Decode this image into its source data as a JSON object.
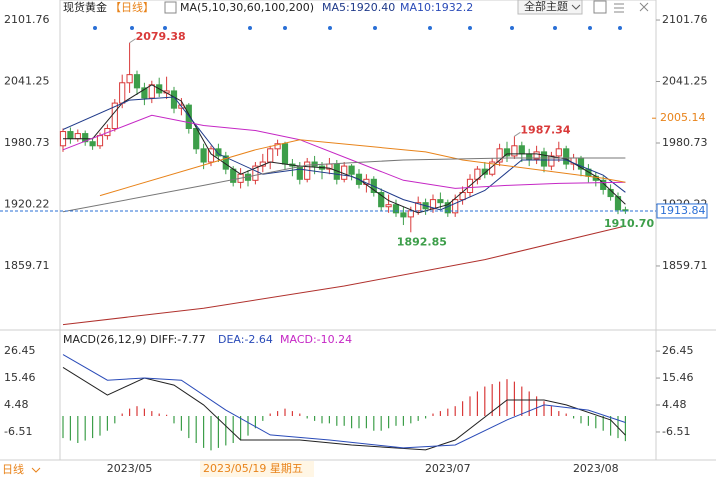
{
  "header": {
    "symbol": "现货黄金",
    "period": "【日线】",
    "ma_label": "MA(5,10,30,60,100,200)",
    "ma5": "MA5:1920.40",
    "ma10": "MA10:1932.2"
  },
  "toolbar": {
    "theme": "全部主题"
  },
  "footer": {
    "period": "日线",
    "cursor_date": "2023/05/19 星期五"
  },
  "chart_data": [
    {
      "type": "candlestick",
      "categories": [
        null,
        null,
        null,
        null,
        null,
        null,
        null,
        null,
        null,
        "2023/05",
        null,
        null,
        null,
        null,
        null,
        null,
        null,
        null,
        null,
        null,
        null,
        null,
        null,
        null,
        null,
        null,
        null,
        null,
        null,
        null,
        null,
        null,
        null,
        null,
        null,
        null,
        null,
        null,
        null,
        null,
        null,
        null,
        null,
        null,
        null,
        null,
        null,
        null,
        null,
        null,
        null,
        null,
        "2023/07",
        null,
        null,
        null,
        null,
        null,
        null,
        null,
        null,
        null,
        null,
        null,
        null,
        null,
        null,
        null,
        null,
        null,
        null,
        null,
        "2023/08",
        null,
        null,
        null,
        null
      ],
      "open": [
        1978,
        1992,
        1985,
        1990,
        1982,
        1978,
        1988,
        1995,
        2020,
        2040,
        2048,
        2035,
        2025,
        2038,
        2030,
        2032,
        2015,
        2018,
        1995,
        1975,
        1962,
        1975,
        1968,
        1955,
        1942,
        1950,
        1944,
        1958,
        1962,
        1975,
        1980,
        1960,
        1958,
        1945,
        1962,
        1958,
        1955,
        1960,
        1945,
        1958,
        1950,
        1940,
        1945,
        1932,
        1918,
        1920,
        1912,
        1908,
        1914,
        1922,
        1916,
        1925,
        1922,
        1912,
        1925,
        1932,
        1945,
        1955,
        1950,
        1962,
        1975,
        1968,
        1978,
        1970,
        1965,
        1972,
        1958,
        1968,
        1975,
        1960,
        1966,
        1955,
        1948,
        1944,
        1935,
        1928,
        1915
      ],
      "high": [
        1995,
        1996,
        1994,
        1993,
        1986,
        1991,
        1999,
        2024,
        2048,
        2079.38,
        2052,
        2040,
        2042,
        2045,
        2046,
        2036,
        2025,
        2020,
        1998,
        1980,
        1978,
        1980,
        1972,
        1958,
        1956,
        1954,
        1962,
        1970,
        1978,
        1984,
        1982,
        1965,
        1962,
        1966,
        1968,
        1962,
        1966,
        1964,
        1962,
        1960,
        1955,
        1950,
        1948,
        1936,
        1930,
        1925,
        1918,
        1918,
        1928,
        1926,
        1930,
        1932,
        1925,
        1930,
        1938,
        1950,
        1958,
        1962,
        1966,
        1980,
        1982,
        1987.34,
        1982,
        1975,
        1978,
        1976,
        1972,
        1982,
        1978,
        1970,
        1968,
        1960,
        1952,
        1948,
        1940,
        1932,
        1918
      ],
      "low": [
        1972,
        1980,
        1982,
        1978,
        1974,
        1975,
        1984,
        1992,
        2015,
        2030,
        2028,
        2018,
        2020,
        2026,
        2024,
        2010,
        2008,
        1990,
        1970,
        1955,
        1958,
        1962,
        1950,
        1938,
        1936,
        1938,
        1940,
        1952,
        1955,
        1968,
        1955,
        1948,
        1940,
        1942,
        1950,
        1945,
        1950,
        1940,
        1942,
        1944,
        1936,
        1932,
        1928,
        1914,
        1912,
        1908,
        1900,
        1892.85,
        1910,
        1910,
        1912,
        1916,
        1908,
        1908,
        1920,
        1928,
        1940,
        1946,
        1948,
        1958,
        1962,
        1965,
        1962,
        1958,
        1960,
        1952,
        1954,
        1962,
        1955,
        1954,
        1948,
        1942,
        1938,
        1930,
        1924,
        1910.7,
        1911
      ],
      "close": [
        1992,
        1985,
        1990,
        1982,
        1978,
        1988,
        1995,
        2020,
        2040,
        2048,
        2035,
        2025,
        2038,
        2030,
        2032,
        2015,
        2018,
        1995,
        1975,
        1962,
        1975,
        1968,
        1955,
        1942,
        1950,
        1944,
        1958,
        1962,
        1975,
        1980,
        1960,
        1958,
        1945,
        1962,
        1958,
        1955,
        1960,
        1945,
        1958,
        1950,
        1940,
        1945,
        1932,
        1918,
        1920,
        1912,
        1908,
        1914,
        1922,
        1916,
        1925,
        1922,
        1912,
        1925,
        1932,
        1945,
        1955,
        1950,
        1962,
        1975,
        1968,
        1978,
        1970,
        1965,
        1972,
        1958,
        1968,
        1975,
        1960,
        1966,
        1955,
        1948,
        1944,
        1935,
        1928,
        1915,
        1913.84
      ],
      "up_color": "#d93a3a",
      "down_color": "#3d9e4a",
      "ylim": [
        1801.6,
        2113.6
      ],
      "yticks": [
        1859.71,
        1920.22,
        1980.73,
        2041.25,
        2101.76
      ],
      "lines": [
        {
          "color": "#222222",
          "x": [
            0,
            4,
            8,
            12,
            16,
            20,
            24,
            28,
            32,
            36,
            40,
            44,
            48,
            52,
            56,
            60,
            64,
            68,
            72,
            76
          ],
          "values": [
            1985,
            1985,
            2020,
            2038,
            2022,
            1970,
            1950,
            1962,
            1958,
            1956,
            1945,
            1924,
            1912,
            1920,
            1945,
            1970,
            1970,
            1965,
            1948,
            1920.4
          ]
        },
        {
          "color": "#1f3a8a",
          "x": [
            0,
            9,
            15,
            21,
            27,
            32,
            39,
            46,
            51,
            57,
            62,
            68,
            73,
            76
          ],
          "values": [
            1994,
            2023,
            2026,
            1970,
            1950,
            1955,
            1948,
            1925,
            1915,
            1934,
            1964,
            1964,
            1949,
            1932.2
          ]
        },
        {
          "color": "#c527c5",
          "x": [
            0,
            12,
            19,
            26,
            32,
            39,
            46,
            53,
            60,
            67,
            76
          ],
          "values": [
            1974,
            2008,
            1998,
            1993,
            1984,
            1964,
            1944,
            1936,
            1939,
            1941,
            1942
          ]
        },
        {
          "color": "#e8831a",
          "x": [
            5,
            26,
            32,
            49,
            54,
            73,
            76
          ],
          "values": [
            1929,
            1974,
            1984,
            1972,
            1964,
            1946,
            1942
          ]
        },
        {
          "color": "#777777",
          "x": [
            0,
            19,
            33,
            46,
            60,
            76
          ],
          "values": [
            1913,
            1939,
            1959,
            1964,
            1966,
            1966
          ]
        },
        {
          "color": "#b0312d",
          "x": [
            0,
            19,
            38,
            57,
            76
          ],
          "values": [
            1802,
            1818,
            1840,
            1866,
            1899
          ]
        }
      ],
      "annotations": [
        "2079.38",
        "1892.85",
        "1987.34",
        "1910.70"
      ],
      "markers": [
        {
          "value": 2005.14,
          "color": "#e8831a"
        }
      ],
      "last_price_color": "#2a6fd6"
    },
    {
      "type": "macd",
      "title": "MACD(26,12,9)",
      "diff_label": "DIFF:-7.77",
      "dea_label": "DEA:-2.64",
      "macd_label": "MACD:-10.24",
      "values": [
        -9,
        -10,
        -11,
        -10,
        -9,
        -8,
        -6,
        -3,
        1,
        3,
        4,
        3,
        2,
        1,
        0.5,
        -3,
        -6,
        -9,
        -11,
        -13,
        -14,
        -13,
        -12,
        -11,
        -10,
        -8,
        -5,
        -2,
        1,
        2,
        3,
        2,
        1,
        -1,
        -2,
        -3,
        -3,
        -4,
        -4,
        -5,
        -5,
        -5,
        -6,
        -6,
        -5,
        -4,
        -4,
        -3,
        -2,
        -1,
        1,
        2,
        3,
        4,
        6,
        8,
        10,
        12,
        13,
        14,
        15,
        14,
        12,
        10,
        8,
        6,
        4,
        2,
        1,
        -1,
        -3,
        -4,
        -5,
        -6,
        -8,
        -9,
        -10.24
      ],
      "up_color": "#d93a3a",
      "down_color": "#3d9e4a",
      "ylim": [
        -16.3,
        33
      ],
      "yticks": [
        -6.51,
        4.48,
        15.46,
        26.45
      ],
      "lines": [
        {
          "color": "#222222",
          "x": [
            0,
            6,
            11,
            15,
            19,
            24,
            32,
            39,
            49,
            53,
            60,
            65,
            68,
            74,
            76
          ],
          "values": [
            19.8,
            8.5,
            15.5,
            12.6,
            4.5,
            -9.8,
            -9.8,
            -11.8,
            -13.8,
            -9.8,
            6.5,
            6.5,
            4.5,
            -1.6,
            -7.77
          ]
        },
        {
          "color": "#2a4bb8",
          "x": [
            0,
            6,
            11,
            16,
            22,
            28,
            36,
            46,
            53,
            60,
            65,
            71,
            76
          ],
          "values": [
            25,
            14.6,
            15.5,
            14.6,
            2.4,
            -7.7,
            -9.8,
            -13,
            -11.8,
            -1.6,
            4.5,
            2.4,
            -2.64
          ]
        }
      ]
    }
  ]
}
